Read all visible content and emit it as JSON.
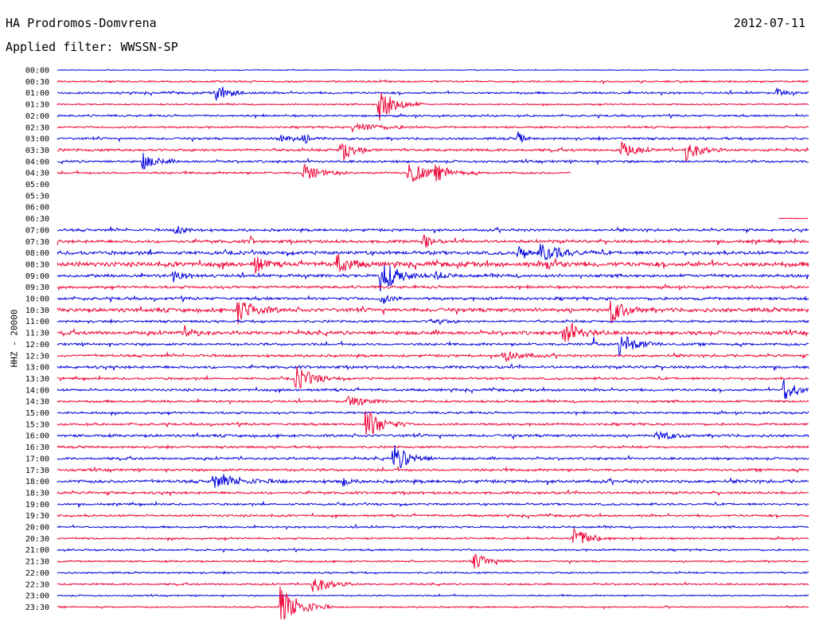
{
  "header": {
    "station": "HA Prodromos-Domvrena",
    "date": "2012-07-11",
    "filter": "Applied filter: WWSSN-SP"
  },
  "colors": {
    "even_hour": "#0000dd",
    "half_hour": "#ee0033"
  },
  "chart_data": {
    "type": "line",
    "title": "HA Prodromos-Domvrena",
    "subtitle": "Applied filter: WWSSN-SP",
    "ylabel": "HHZ - 20000",
    "xlabel": "",
    "row_labels": [
      "00:00",
      "00:30",
      "01:00",
      "01:30",
      "02:00",
      "02:30",
      "03:00",
      "03:30",
      "04:00",
      "04:30",
      "05:00",
      "05:30",
      "06:00",
      "06:30",
      "07:00",
      "07:30",
      "08:00",
      "08:30",
      "09:00",
      "09:30",
      "10:00",
      "10:30",
      "11:00",
      "11:30",
      "12:00",
      "12:30",
      "13:00",
      "13:30",
      "14:00",
      "14:30",
      "15:00",
      "15:30",
      "16:00",
      "16:30",
      "17:00",
      "17:30",
      "18:00",
      "18:30",
      "19:00",
      "19:30",
      "20:00",
      "20:30",
      "21:00",
      "21:30",
      "22:00",
      "22:30",
      "23:00",
      "23:30"
    ],
    "minutes_per_row": 30,
    "noise": [
      0.6,
      1.2,
      1.5,
      1.0,
      1.4,
      1.3,
      1.6,
      1.8,
      1.7,
      1.5,
      0,
      0,
      0,
      0,
      1.8,
      2.2,
      2.5,
      3.4,
      2.2,
      1.8,
      2.0,
      2.8,
      1.6,
      2.6,
      1.8,
      1.8,
      2.0,
      1.6,
      1.8,
      1.6,
      1.5,
      1.6,
      1.9,
      1.5,
      1.7,
      1.8,
      2.2,
      1.8,
      1.5,
      1.6,
      1.4,
      1.3,
      1.3,
      1.2,
      1.2,
      1.2,
      1.0,
      1.0
    ],
    "coverage": [
      [
        0,
        30
      ],
      [
        0,
        30
      ],
      [
        0,
        30
      ],
      [
        0,
        30
      ],
      [
        0,
        30
      ],
      [
        0,
        30
      ],
      [
        0,
        30
      ],
      [
        0,
        30
      ],
      [
        0,
        30
      ],
      [
        0,
        20.5
      ],
      null,
      null,
      null,
      [
        28.8,
        30
      ],
      [
        0,
        30
      ],
      [
        0,
        30
      ],
      [
        0,
        30
      ],
      [
        0,
        30
      ],
      [
        0,
        30
      ],
      [
        0,
        30
      ],
      [
        0,
        30
      ],
      [
        0,
        30
      ],
      [
        0,
        30
      ],
      [
        0,
        30
      ],
      [
        0,
        30
      ],
      [
        0,
        30
      ],
      [
        0,
        30
      ],
      [
        0,
        30
      ],
      [
        0,
        30
      ],
      [
        0,
        30
      ],
      [
        0,
        30
      ],
      [
        0,
        30
      ],
      [
        0,
        30
      ],
      [
        0,
        30
      ],
      [
        0,
        30
      ],
      [
        0,
        30
      ],
      [
        0,
        30
      ],
      [
        0,
        30
      ],
      [
        0,
        30
      ],
      [
        0,
        30
      ],
      [
        0,
        30
      ],
      [
        0,
        30
      ],
      [
        0,
        30
      ],
      [
        0,
        30
      ],
      [
        0,
        30
      ],
      [
        0,
        30
      ],
      [
        0,
        30
      ],
      [
        0,
        30
      ]
    ],
    "events": [
      {
        "row": 2,
        "t": 6.3,
        "amp": 9,
        "dur": 0.6
      },
      {
        "row": 2,
        "t": 28.7,
        "amp": 6,
        "dur": 0.3
      },
      {
        "row": 3,
        "t": 12.8,
        "amp": 22,
        "dur": 0.6
      },
      {
        "row": 5,
        "t": 11.8,
        "amp": 6,
        "dur": 1.0
      },
      {
        "row": 6,
        "t": 8.8,
        "amp": 7,
        "dur": 0.5
      },
      {
        "row": 6,
        "t": 9.8,
        "amp": 5,
        "dur": 0.4
      },
      {
        "row": 6,
        "t": 18.4,
        "amp": 8,
        "dur": 0.2
      },
      {
        "row": 7,
        "t": 11.3,
        "amp": 16,
        "dur": 0.5
      },
      {
        "row": 7,
        "t": 22.5,
        "amp": 10,
        "dur": 0.5
      },
      {
        "row": 7,
        "t": 25.1,
        "amp": 14,
        "dur": 0.5
      },
      {
        "row": 8,
        "t": 3.4,
        "amp": 10,
        "dur": 0.5
      },
      {
        "row": 9,
        "t": 9.8,
        "amp": 11,
        "dur": 0.6
      },
      {
        "row": 9,
        "t": 14.0,
        "amp": 16,
        "dur": 0.6
      },
      {
        "row": 9,
        "t": 15.1,
        "amp": 8,
        "dur": 0.6
      },
      {
        "row": 14,
        "t": 4.7,
        "amp": 6,
        "dur": 0.4
      },
      {
        "row": 15,
        "t": 7.7,
        "amp": 7,
        "dur": 0.1
      },
      {
        "row": 15,
        "t": 14.6,
        "amp": 9,
        "dur": 0.3
      },
      {
        "row": 16,
        "t": 18.4,
        "amp": 11,
        "dur": 0.3
      },
      {
        "row": 16,
        "t": 19.3,
        "amp": 12,
        "dur": 0.7
      },
      {
        "row": 17,
        "t": 7.9,
        "amp": 12,
        "dur": 0.3
      },
      {
        "row": 17,
        "t": 11.1,
        "amp": 14,
        "dur": 0.5
      },
      {
        "row": 17,
        "t": 19.5,
        "amp": 7,
        "dur": 0.4
      },
      {
        "row": 18,
        "t": 4.6,
        "amp": 6,
        "dur": 0.5
      },
      {
        "row": 18,
        "t": 12.9,
        "amp": 22,
        "dur": 0.6
      },
      {
        "row": 18,
        "t": 15.1,
        "amp": 6,
        "dur": 0.3
      },
      {
        "row": 20,
        "t": 12.9,
        "amp": 8,
        "dur": 0.3
      },
      {
        "row": 21,
        "t": 7.2,
        "amp": 16,
        "dur": 0.6
      },
      {
        "row": 21,
        "t": 22.1,
        "amp": 16,
        "dur": 0.5
      },
      {
        "row": 22,
        "t": 14.9,
        "amp": 6,
        "dur": 0.4
      },
      {
        "row": 23,
        "t": 5.1,
        "amp": 8,
        "dur": 0.4
      },
      {
        "row": 23,
        "t": 20.2,
        "amp": 14,
        "dur": 0.6
      },
      {
        "row": 24,
        "t": 22.4,
        "amp": 16,
        "dur": 0.6
      },
      {
        "row": 24,
        "t": 21.4,
        "amp": 18,
        "dur": 0.05
      },
      {
        "row": 25,
        "t": 17.8,
        "amp": 8,
        "dur": 0.6
      },
      {
        "row": 27,
        "t": 9.5,
        "amp": 16,
        "dur": 0.6
      },
      {
        "row": 28,
        "t": 29.0,
        "amp": 14,
        "dur": 0.5
      },
      {
        "row": 29,
        "t": 11.6,
        "amp": 7,
        "dur": 0.6
      },
      {
        "row": 31,
        "t": 12.3,
        "amp": 20,
        "dur": 0.6
      },
      {
        "row": 32,
        "t": 23.9,
        "amp": 7,
        "dur": 0.5
      },
      {
        "row": 34,
        "t": 13.4,
        "amp": 18,
        "dur": 0.6
      },
      {
        "row": 36,
        "t": 6.2,
        "amp": 8,
        "dur": 1.0
      },
      {
        "row": 36,
        "t": 11.4,
        "amp": 7,
        "dur": 0.2
      },
      {
        "row": 41,
        "t": 20.6,
        "amp": 14,
        "dur": 0.6
      },
      {
        "row": 43,
        "t": 16.6,
        "amp": 10,
        "dur": 0.6
      },
      {
        "row": 45,
        "t": 10.2,
        "amp": 12,
        "dur": 0.6
      },
      {
        "row": 47,
        "t": 8.9,
        "amp": 26,
        "dur": 0.7
      }
    ]
  }
}
